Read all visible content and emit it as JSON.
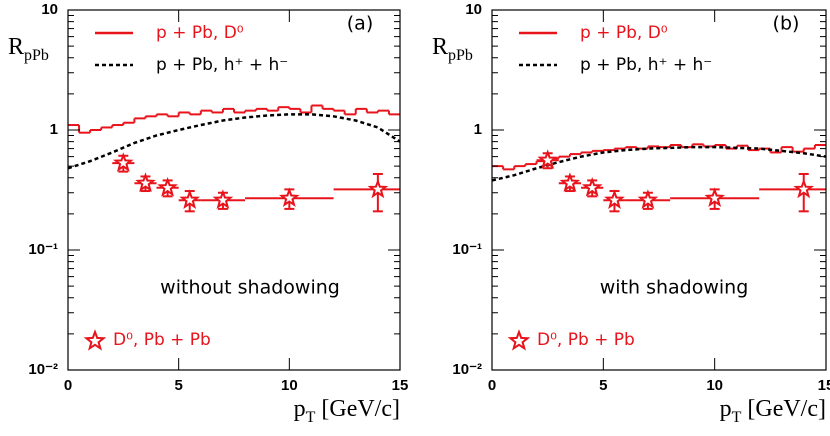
{
  "chart_data": [
    {
      "type": "hist-log",
      "panel_label": "(a)",
      "annotation": "without shadowing",
      "ylabel": [
        "R",
        "pPb"
      ],
      "xlabel": [
        "p",
        "T",
        " [GeV/c]"
      ],
      "xlim": [
        0,
        15
      ],
      "xticks": [
        0,
        5,
        10,
        15
      ],
      "ylim": [
        0.01,
        10
      ],
      "log_y": true,
      "yticks": [
        {
          "value": 0.01,
          "label": "10⁻²"
        },
        {
          "value": 0.1,
          "label": "10⁻¹"
        },
        1,
        10
      ],
      "series": [
        {
          "name": "p + Pb, D⁰",
          "color": "#e8141c",
          "style": "step",
          "bins": [
            0,
            0.5,
            1,
            1.5,
            2,
            2.5,
            3,
            3.5,
            4,
            4.5,
            5,
            5.5,
            6,
            6.5,
            7,
            7.5,
            8,
            8.5,
            9,
            9.5,
            10,
            10.5,
            11,
            11.5,
            12,
            12.5,
            13,
            13.5,
            14,
            14.5,
            15
          ],
          "values": [
            1.1,
            0.95,
            1.0,
            1.05,
            1.1,
            1.15,
            1.25,
            1.3,
            1.35,
            1.3,
            1.4,
            1.35,
            1.45,
            1.4,
            1.5,
            1.4,
            1.45,
            1.5,
            1.45,
            1.55,
            1.5,
            1.4,
            1.6,
            1.5,
            1.45,
            1.35,
            1.5,
            1.4,
            1.45,
            1.35
          ]
        },
        {
          "name": "p + Pb, h⁺ + h⁻",
          "color": "#000000",
          "style": "dashed",
          "x": [
            0,
            1,
            2,
            3,
            4,
            5,
            6,
            7,
            8,
            9,
            10,
            11,
            12,
            13,
            14,
            15
          ],
          "values": [
            0.48,
            0.55,
            0.65,
            0.78,
            0.9,
            1.0,
            1.1,
            1.2,
            1.27,
            1.32,
            1.35,
            1.35,
            1.3,
            1.2,
            1.05,
            0.8
          ]
        },
        {
          "name": "D⁰, Pb + Pb",
          "color": "#e8141c",
          "style": "stars",
          "x": [
            2.5,
            3.5,
            4.5,
            5.5,
            7,
            10,
            14
          ],
          "values": [
            0.53,
            0.36,
            0.33,
            0.26,
            0.26,
            0.27,
            0.32
          ],
          "xerr": [
            0.5,
            0.5,
            0.5,
            0.5,
            1,
            2,
            2
          ],
          "yerr": [
            0.08,
            0.05,
            0.05,
            0.05,
            0.04,
            0.05,
            0.11
          ]
        }
      ]
    },
    {
      "type": "hist-log",
      "panel_label": "(b)",
      "annotation": "with shadowing",
      "ylabel": [
        "R",
        "pPb"
      ],
      "xlabel": [
        "p",
        "T",
        " [GeV/c]"
      ],
      "xlim": [
        0,
        15
      ],
      "xticks": [
        0,
        5,
        10,
        15
      ],
      "ylim": [
        0.01,
        10
      ],
      "log_y": true,
      "yticks": [
        {
          "value": 0.01,
          "label": "10⁻²"
        },
        {
          "value": 0.1,
          "label": "10⁻¹"
        },
        1,
        10
      ],
      "series": [
        {
          "name": "p + Pb, D⁰",
          "color": "#e8141c",
          "style": "step",
          "bins": [
            0,
            0.5,
            1,
            1.5,
            2,
            2.5,
            3,
            3.5,
            4,
            4.5,
            5,
            5.5,
            6,
            6.5,
            7,
            7.5,
            8,
            8.5,
            9,
            9.5,
            10,
            10.5,
            11,
            11.5,
            12,
            12.5,
            13,
            13.5,
            14,
            14.5,
            15
          ],
          "values": [
            0.5,
            0.47,
            0.5,
            0.52,
            0.55,
            0.58,
            0.6,
            0.63,
            0.65,
            0.67,
            0.68,
            0.7,
            0.72,
            0.7,
            0.73,
            0.72,
            0.75,
            0.72,
            0.76,
            0.73,
            0.75,
            0.7,
            0.74,
            0.68,
            0.7,
            0.65,
            0.72,
            0.66,
            0.7,
            0.75
          ]
        },
        {
          "name": "p + Pb, h⁺ + h⁻",
          "color": "#000000",
          "style": "dashed",
          "x": [
            0,
            1,
            2,
            3,
            4,
            5,
            6,
            7,
            8,
            9,
            10,
            11,
            12,
            13,
            14,
            15
          ],
          "values": [
            0.38,
            0.42,
            0.48,
            0.54,
            0.6,
            0.65,
            0.68,
            0.7,
            0.71,
            0.72,
            0.72,
            0.71,
            0.7,
            0.67,
            0.64,
            0.6
          ]
        },
        {
          "name": "D⁰, Pb + Pb",
          "color": "#e8141c",
          "style": "stars",
          "x": [
            2.5,
            3.5,
            4.5,
            5.5,
            7,
            10,
            14
          ],
          "values": [
            0.56,
            0.36,
            0.33,
            0.26,
            0.26,
            0.27,
            0.32
          ],
          "xerr": [
            0.5,
            0.5,
            0.5,
            0.5,
            1,
            2,
            2
          ],
          "yerr": [
            0.08,
            0.05,
            0.05,
            0.05,
            0.04,
            0.05,
            0.11
          ]
        }
      ]
    }
  ]
}
